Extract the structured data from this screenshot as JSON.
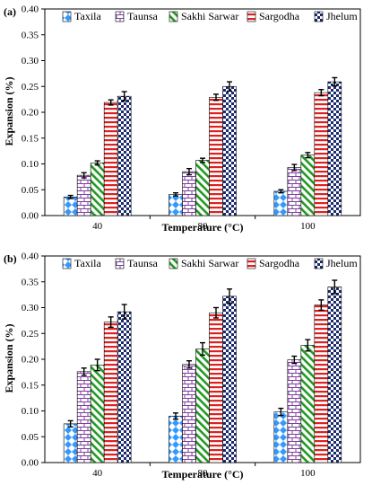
{
  "chart_data": [
    {
      "type": "bar",
      "panel_label": "(a)",
      "categories": [
        "40",
        "80",
        "100"
      ],
      "series": [
        {
          "name": "Taxila",
          "values": [
            0.036,
            0.041,
            0.047
          ],
          "errors": [
            0.003,
            0.003,
            0.003
          ]
        },
        {
          "name": "Taunsa",
          "values": [
            0.078,
            0.085,
            0.093
          ],
          "errors": [
            0.005,
            0.006,
            0.006
          ]
        },
        {
          "name": "Sakhi Sarwar",
          "values": [
            0.102,
            0.107,
            0.117
          ],
          "errors": [
            0.004,
            0.004,
            0.005
          ]
        },
        {
          "name": "Sargodha",
          "values": [
            0.219,
            0.229,
            0.238
          ],
          "errors": [
            0.005,
            0.006,
            0.006
          ]
        },
        {
          "name": "Jhelum",
          "values": [
            0.231,
            0.25,
            0.259
          ],
          "errors": [
            0.009,
            0.009,
            0.008
          ]
        }
      ],
      "xlabel": "Temperature (°C)",
      "ylabel": "Expansion (%)",
      "ylim": [
        0,
        0.4
      ],
      "yticks": [
        "0.00",
        "0.05",
        "0.10",
        "0.15",
        "0.20",
        "0.25",
        "0.30",
        "0.35",
        "0.40"
      ],
      "grid": false,
      "legend": "top"
    },
    {
      "type": "bar",
      "panel_label": "(b)",
      "categories": [
        "40",
        "80",
        "100"
      ],
      "series": [
        {
          "name": "Taxila",
          "values": [
            0.075,
            0.09,
            0.098
          ],
          "errors": [
            0.006,
            0.006,
            0.007
          ]
        },
        {
          "name": "Taunsa",
          "values": [
            0.176,
            0.19,
            0.199
          ],
          "errors": [
            0.007,
            0.007,
            0.007
          ]
        },
        {
          "name": "Sakhi Sarwar",
          "values": [
            0.189,
            0.22,
            0.227
          ],
          "errors": [
            0.011,
            0.012,
            0.011
          ]
        },
        {
          "name": "Sargodha",
          "values": [
            0.272,
            0.29,
            0.305
          ],
          "errors": [
            0.01,
            0.01,
            0.01
          ]
        },
        {
          "name": "Jhelum",
          "values": [
            0.292,
            0.322,
            0.34
          ],
          "errors": [
            0.014,
            0.014,
            0.013
          ]
        }
      ],
      "xlabel": "Temperature (°C)",
      "ylabel": "Expansion (%)",
      "ylim": [
        0,
        0.4
      ],
      "yticks": [
        "0.00",
        "0.05",
        "0.10",
        "0.15",
        "0.20",
        "0.25",
        "0.30",
        "0.35",
        "0.40"
      ],
      "grid": false,
      "legend": "top"
    }
  ],
  "series_styles": [
    {
      "pattern": "diamonds",
      "color": "#3399ff"
    },
    {
      "pattern": "brick",
      "color": "#7f3f9f"
    },
    {
      "pattern": "diagonal",
      "color": "#229922"
    },
    {
      "pattern": "horizontal",
      "color": "#e02020"
    },
    {
      "pattern": "checkerboard",
      "color": "#1a2a6c"
    }
  ]
}
